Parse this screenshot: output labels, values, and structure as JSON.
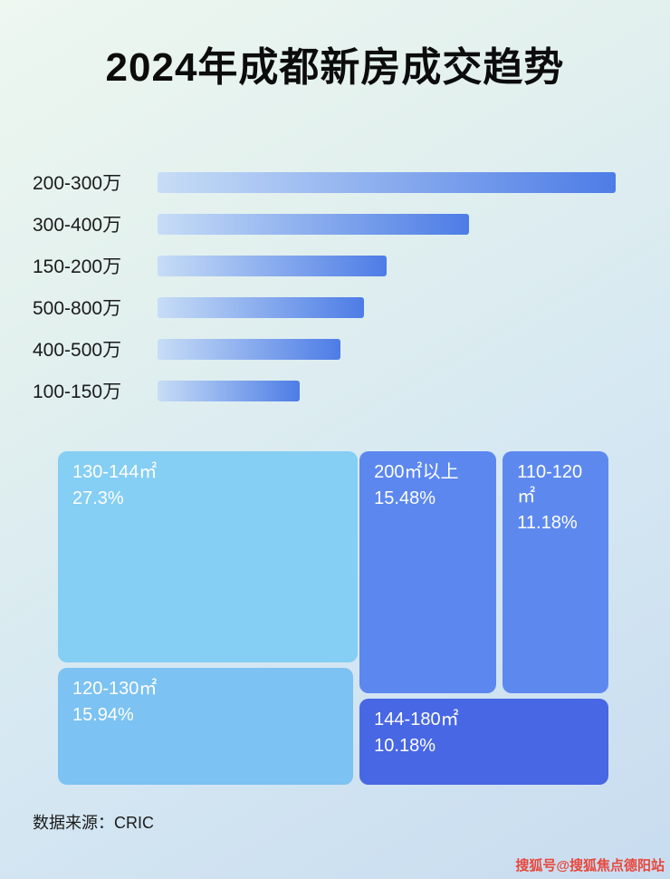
{
  "title": "2024年成都新房成交趋势",
  "colors": {
    "bar_gradient_start": "#C7DDF6",
    "bar_gradient_end": "#4D7CE6",
    "watermark": "#E8483C"
  },
  "chart_data": [
    {
      "type": "bar",
      "orientation": "horizontal",
      "categories": [
        "200-300万",
        "300-400万",
        "150-200万",
        "500-800万",
        "400-500万",
        "100-150万"
      ],
      "values_pct_of_longest": [
        100,
        68,
        50,
        45,
        40,
        31
      ],
      "axis_labels": "none visible",
      "grid": false,
      "legend": false
    },
    {
      "type": "treemap",
      "items": [
        {
          "label": "130-144㎡",
          "value": "27.3%",
          "color": "#85CEF4"
        },
        {
          "label": "200㎡以上",
          "value": "15.48%",
          "color": "#5B87EF"
        },
        {
          "label": "110-120㎡",
          "value": "11.18%",
          "color": "#5D89EF"
        },
        {
          "label": "120-130㎡",
          "value": "15.94%",
          "color": "#7CC2F2"
        },
        {
          "label": "144-180㎡",
          "value": "10.18%",
          "color": "#4867E4"
        }
      ]
    }
  ],
  "footer": {
    "source": "数据来源：CRIC"
  },
  "watermark": "搜狐号@搜狐焦点德阳站"
}
